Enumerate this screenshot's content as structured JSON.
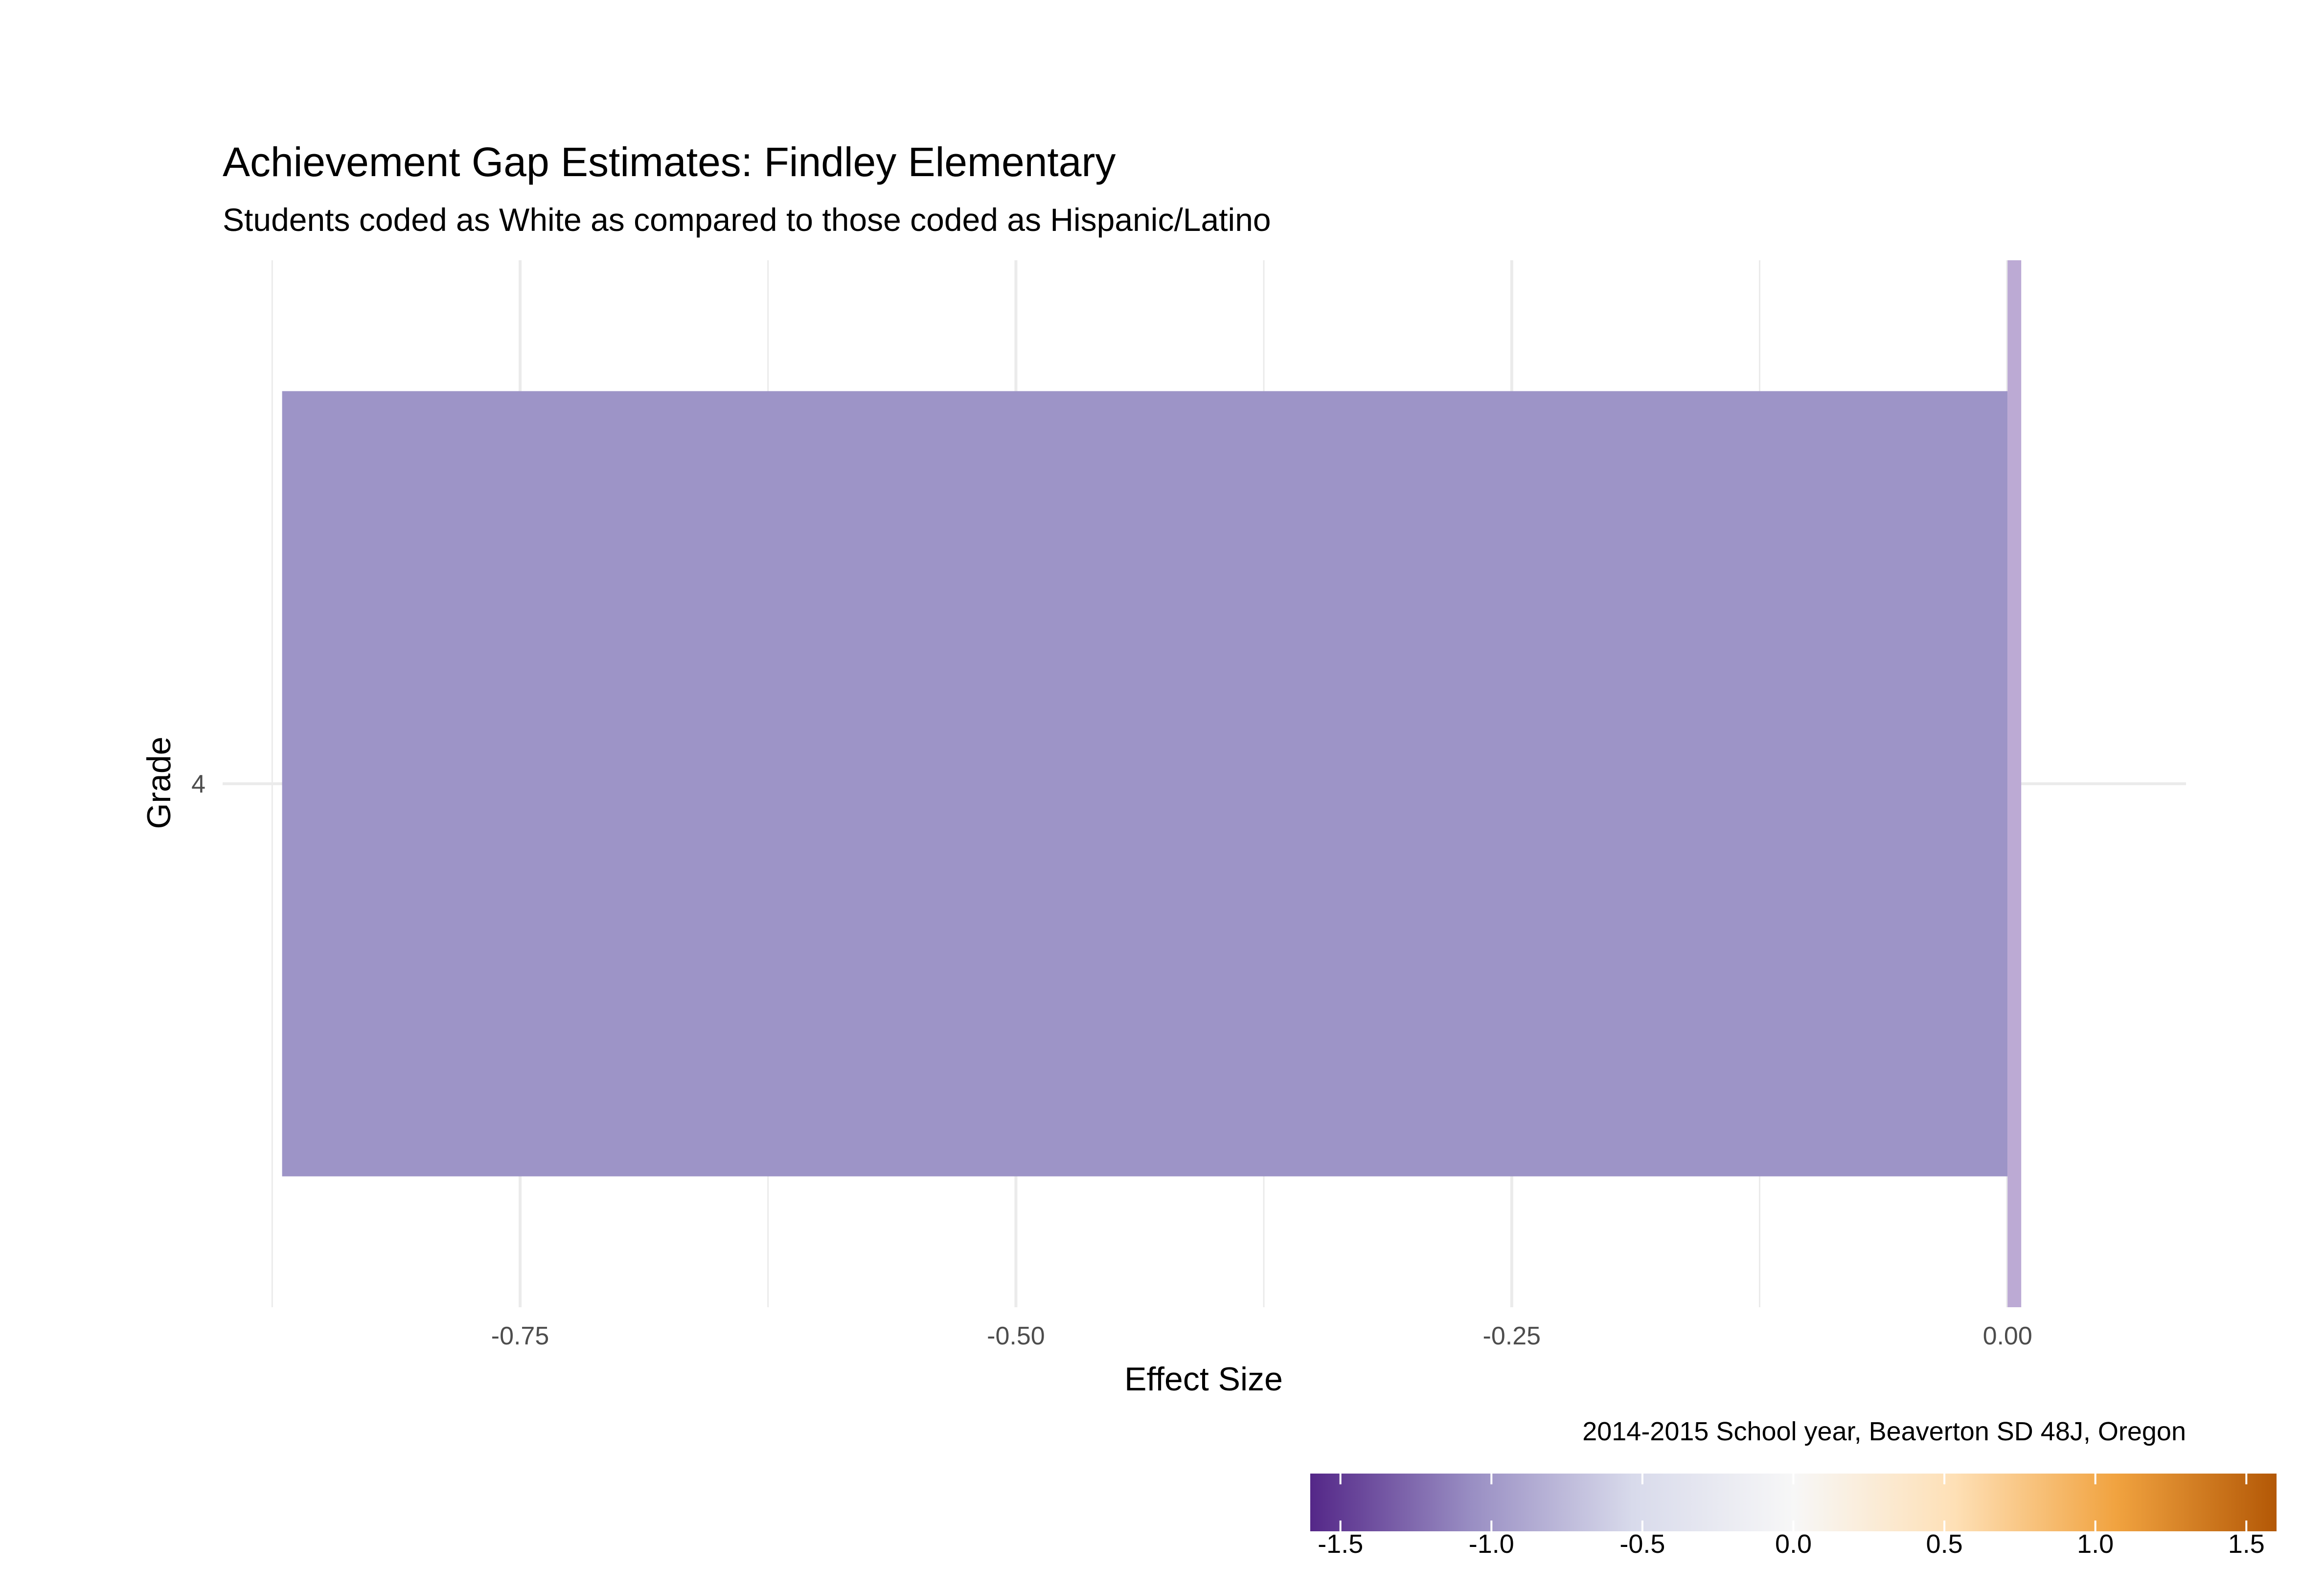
{
  "chart_data": {
    "type": "bar",
    "orientation": "horizontal",
    "title": "Achievement Gap Estimates: Findley Elementary",
    "subtitle": "Students coded as White as compared to those coded as Hispanic/Latino",
    "xlabel": "Effect Size",
    "ylabel": "Grade",
    "categories": [
      "4"
    ],
    "values": [
      -0.87
    ],
    "xlim": [
      -0.9,
      0.09
    ],
    "x_ticks": [
      -0.75,
      -0.5,
      -0.25,
      0.0
    ],
    "x_tick_labels": [
      "-0.75",
      "-0.50",
      "-0.25",
      "0.00"
    ],
    "reference_line": 0.0,
    "caption": "2014-2015 School year, Beaverton SD 48J, Oregon",
    "grid": true,
    "legend": {
      "placement": "bottom-right",
      "type": "colorbar",
      "range": [
        -1.6,
        1.6
      ],
      "ticks": [
        -1.5,
        -1.0,
        -0.5,
        0.0,
        0.5,
        1.0,
        1.5
      ],
      "tick_labels": [
        "-1.5",
        "-1.0",
        "-0.5",
        "0.0",
        "0.5",
        "1.0",
        "1.5"
      ],
      "colors": [
        "#542788",
        "#998ec3",
        "#d8daeb",
        "#f7f7f7",
        "#fee0b6",
        "#f1a340",
        "#b35806"
      ]
    },
    "colors": {
      "bar": "#9d94c7",
      "reference_line": "#bcaad4",
      "grid": "#ebebeb"
    }
  }
}
